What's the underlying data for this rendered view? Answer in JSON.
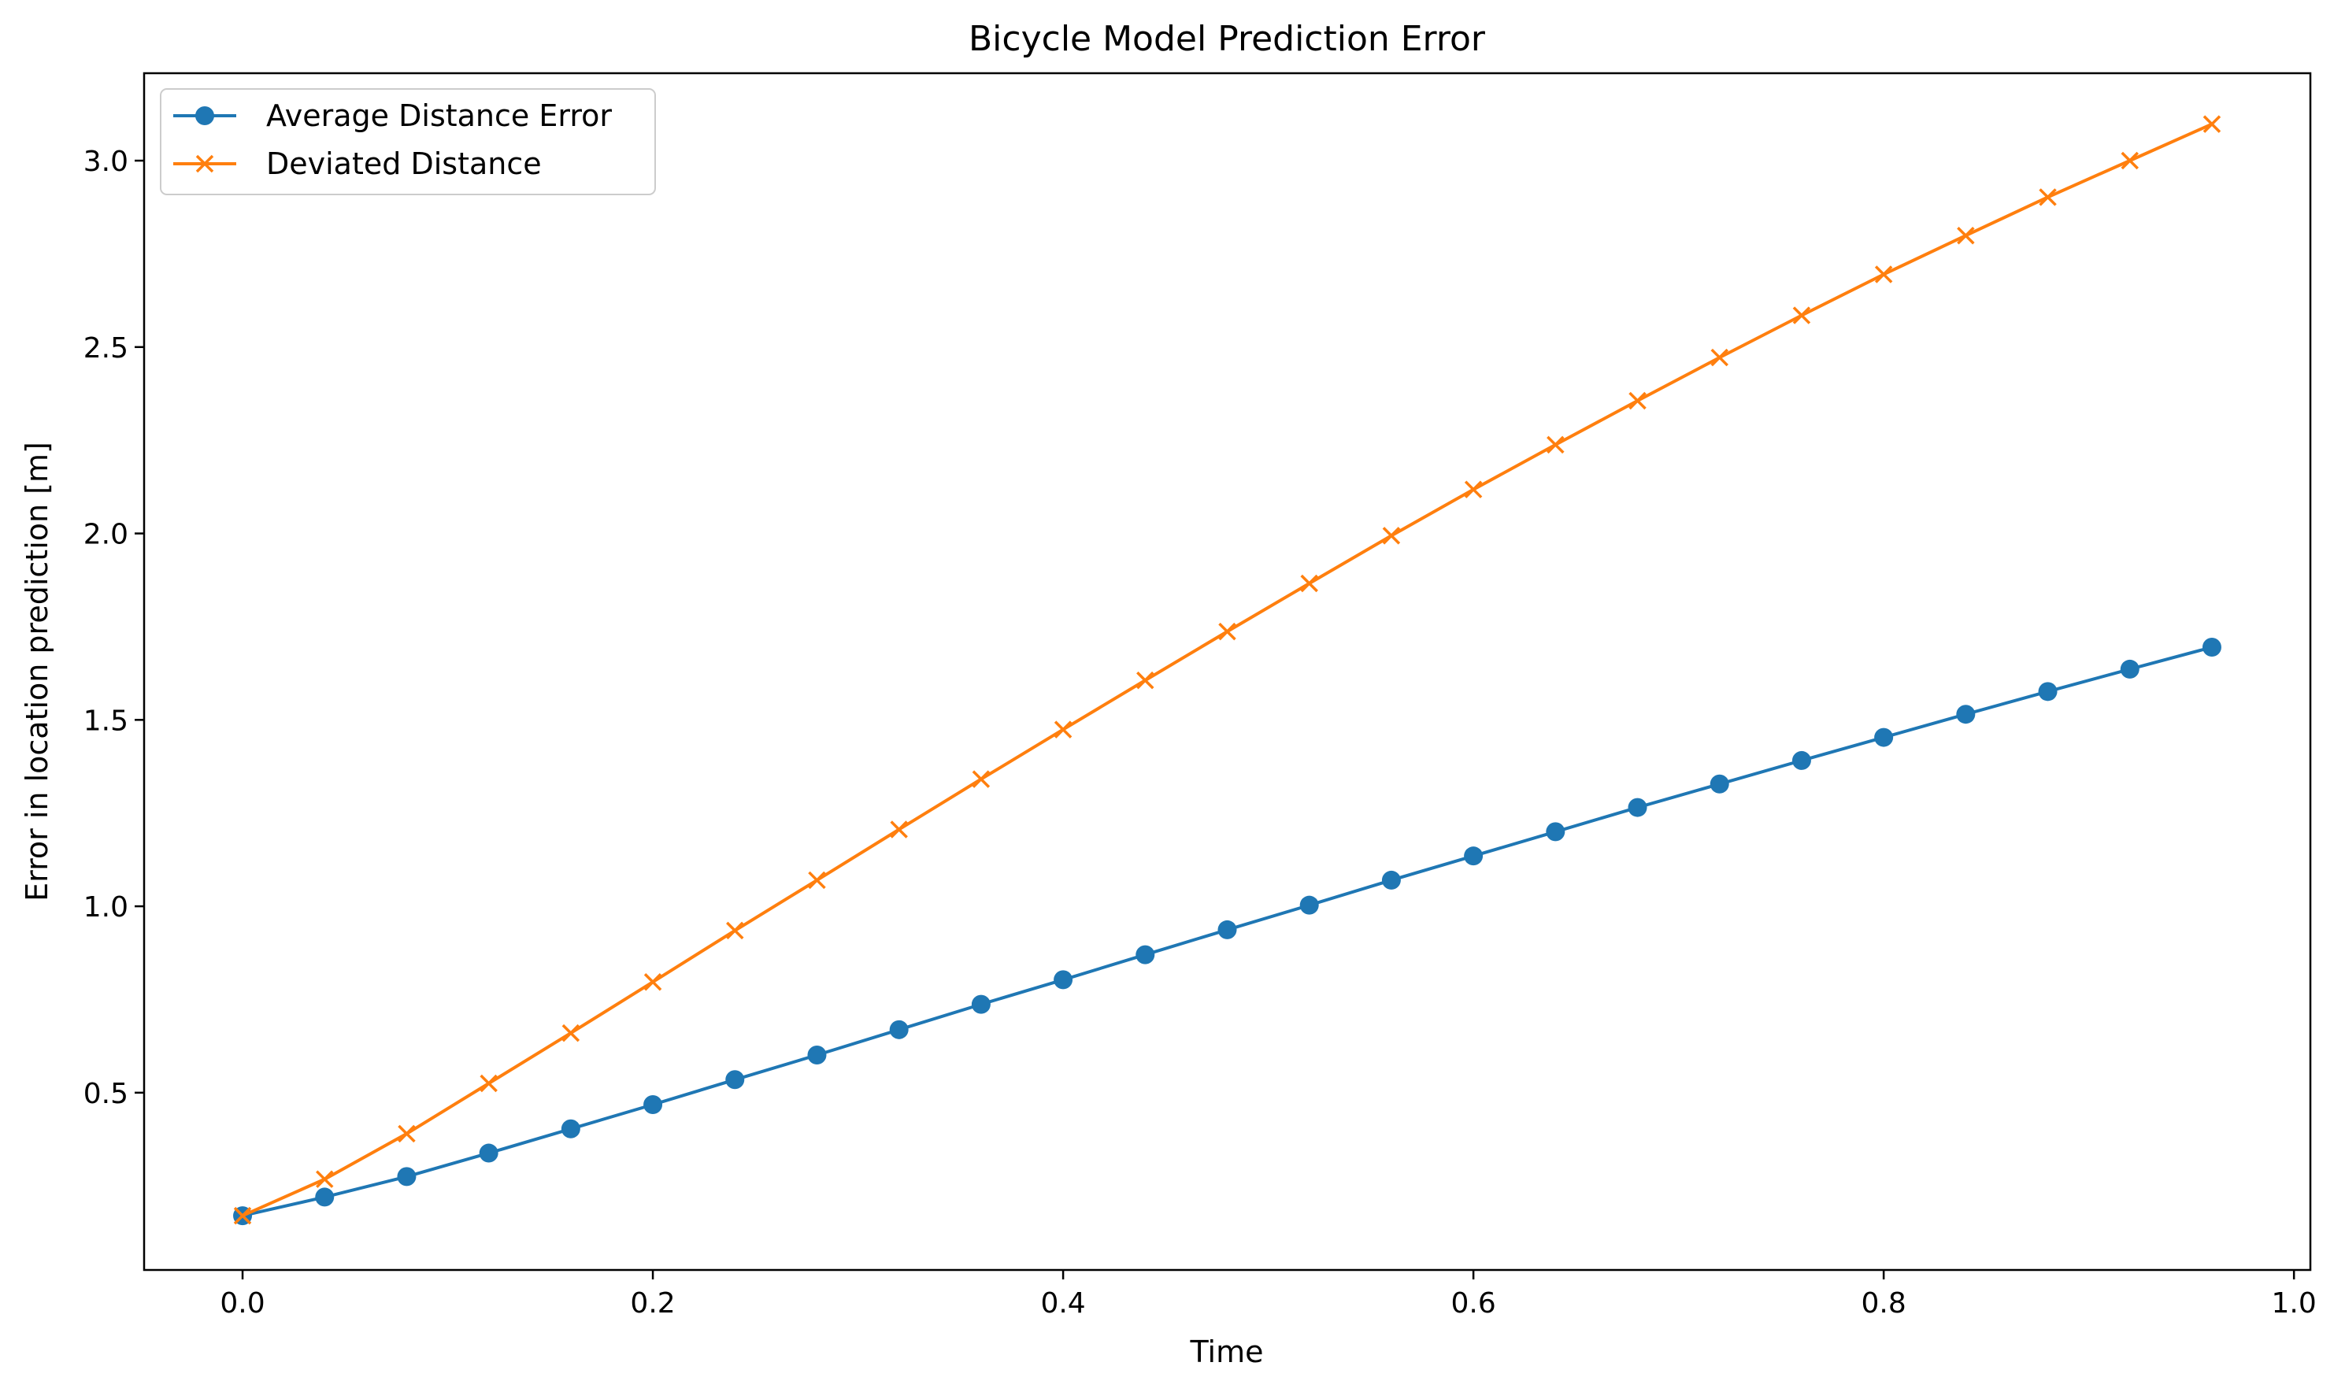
{
  "chart_data": {
    "type": "line",
    "title": "Bicycle Model Prediction Error",
    "xlabel": "Time",
    "ylabel": "Error in location prediction [m]",
    "xlim": [
      -0.048,
      1.008
    ],
    "ylim": [
      0.0245,
      3.2345
    ],
    "xticks": [
      0.0,
      0.2,
      0.4,
      0.6,
      0.8,
      1.0
    ],
    "xtick_labels": [
      "0.0",
      "0.2",
      "0.4",
      "0.6",
      "0.8",
      "1.0"
    ],
    "yticks": [
      0.5,
      1.0,
      1.5,
      2.0,
      2.5,
      3.0
    ],
    "ytick_labels": [
      "0.5",
      "1.0",
      "1.5",
      "2.0",
      "2.5",
      "3.0"
    ],
    "grid": false,
    "legend_position": "top-left",
    "x": [
      0.0,
      0.04,
      0.08,
      0.12,
      0.16,
      0.2,
      0.24,
      0.28,
      0.32,
      0.36,
      0.4,
      0.44,
      0.48,
      0.52,
      0.56,
      0.6,
      0.64,
      0.68,
      0.72,
      0.76,
      0.8,
      0.84,
      0.88,
      0.92,
      0.96
    ],
    "series": [
      {
        "name": "Average Distance Error",
        "color": "#1f77b4",
        "marker": "circle",
        "values": [
          0.17,
          0.22,
          0.275,
          0.338,
          0.403,
          0.468,
          0.535,
          0.601,
          0.669,
          0.737,
          0.803,
          0.87,
          0.937,
          1.003,
          1.07,
          1.135,
          1.2,
          1.265,
          1.328,
          1.391,
          1.453,
          1.515,
          1.576,
          1.636,
          1.695
        ]
      },
      {
        "name": "Deviated Distance",
        "color": "#ff7f0e",
        "marker": "x",
        "values": [
          0.17,
          0.268,
          0.39,
          0.525,
          0.66,
          0.797,
          0.935,
          1.07,
          1.206,
          1.341,
          1.474,
          1.606,
          1.737,
          1.866,
          1.994,
          2.118,
          2.238,
          2.356,
          2.472,
          2.585,
          2.695,
          2.799,
          2.902,
          3.0,
          3.098
        ]
      }
    ]
  }
}
